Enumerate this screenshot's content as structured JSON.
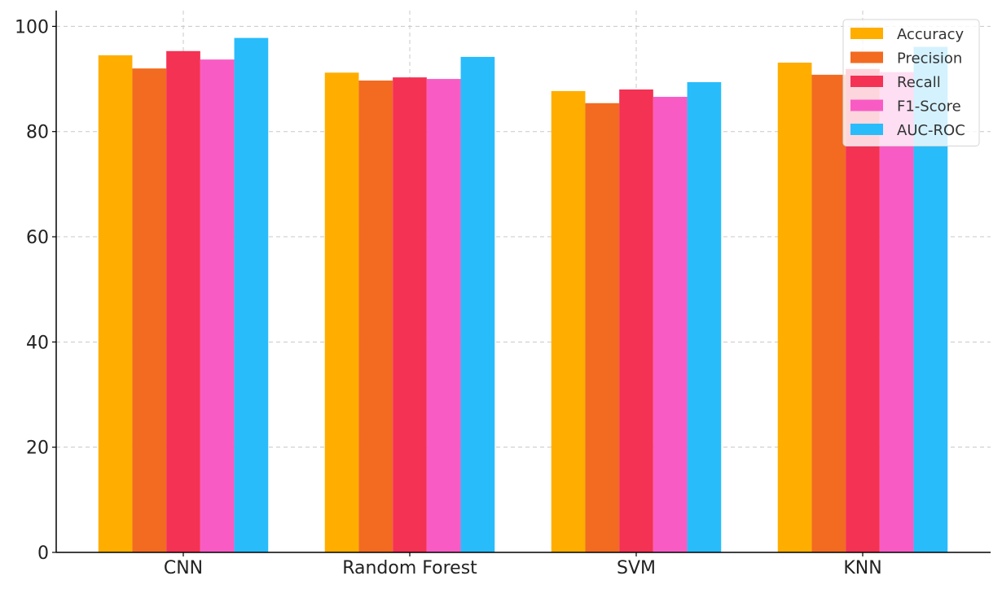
{
  "chart_data": {
    "type": "bar",
    "title": "",
    "xlabel": "",
    "ylabel": "",
    "categories": [
      "CNN",
      "Random Forest",
      "SVM",
      "KNN"
    ],
    "ylim": [
      0,
      103
    ],
    "yticks": [
      0,
      20,
      40,
      60,
      80,
      100
    ],
    "grid": true,
    "legend_position": "top-right",
    "series": [
      {
        "name": "Accuracy",
        "color": "#FFAE00",
        "values": [
          94.5,
          91.2,
          87.7,
          93.1
        ]
      },
      {
        "name": "Precision",
        "color": "#F26B21",
        "values": [
          92.0,
          89.7,
          85.4,
          90.8
        ]
      },
      {
        "name": "Recall",
        "color": "#F43254",
        "values": [
          95.3,
          90.3,
          88.0,
          91.9
        ]
      },
      {
        "name": "F1-Score",
        "color": "#F85CC4",
        "values": [
          93.7,
          90.0,
          86.6,
          91.3
        ]
      },
      {
        "name": "AUC-ROC",
        "color": "#29BCFB",
        "values": [
          97.8,
          94.2,
          89.4,
          96.1
        ]
      }
    ]
  }
}
